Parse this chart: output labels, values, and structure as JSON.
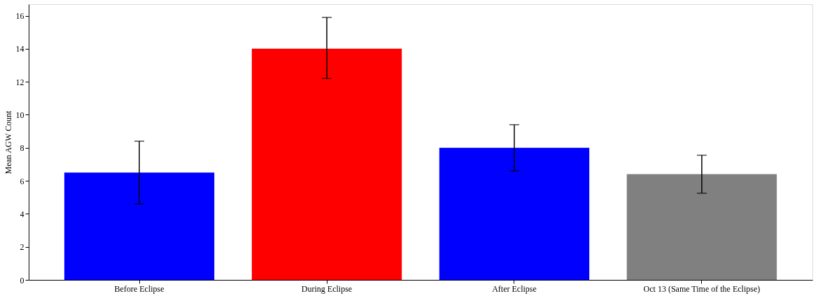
{
  "chart_data": {
    "type": "bar",
    "ylabel": "Mean AGW Count",
    "categories": [
      "Before Eclipse",
      "During Eclipse",
      "After Eclipse",
      "Oct 13 (Same Time of the Eclipse)"
    ],
    "values": [
      6.5,
      14.0,
      8.0,
      6.4
    ],
    "colors": [
      "#0000ff",
      "#ff0000",
      "#0000ff",
      "#808080"
    ],
    "errors": [
      [
        4.6,
        8.4
      ],
      [
        12.2,
        15.9
      ],
      [
        6.6,
        9.4
      ],
      [
        5.25,
        7.55
      ]
    ],
    "ylim": [
      0,
      16.7
    ],
    "yticks": [
      0,
      2,
      4,
      6,
      8,
      10,
      12,
      14,
      16
    ],
    "grid": false
  }
}
